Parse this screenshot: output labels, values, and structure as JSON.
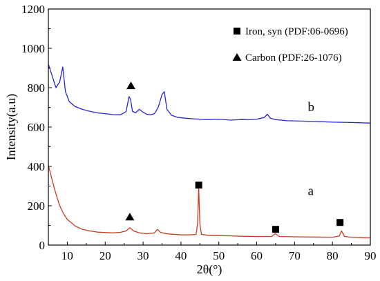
{
  "chart_data": {
    "type": "line",
    "title": "",
    "xlabel": "2θ(°)",
    "ylabel": "Intensity(a.u)",
    "xlim": [
      5,
      90
    ],
    "ylim": [
      0,
      1200
    ],
    "xticks": [
      "10",
      "20",
      "30",
      "40",
      "50",
      "60",
      "70",
      "80",
      "90"
    ],
    "yticks": [
      "0",
      "200",
      "400",
      "600",
      "800",
      "1000",
      "1200"
    ],
    "grid": false,
    "legend_placement": "top-right",
    "legend": [
      {
        "marker": "square",
        "label": "Iron, syn (PDF:06-0696)"
      },
      {
        "marker": "triangle",
        "label": "Carbon (PDF:26-1076)"
      }
    ],
    "series": [
      {
        "name": "b",
        "color": "#2323e0",
        "x": [
          5,
          6,
          7,
          8,
          8.8,
          9.5,
          10.5,
          12,
          14,
          16,
          18,
          20,
          22,
          24,
          25.5,
          26.3,
          26.7,
          27.2,
          28,
          29,
          30,
          31,
          32,
          33,
          34,
          35,
          35.6,
          36.3,
          37.5,
          39,
          41,
          43,
          45,
          47,
          50,
          53,
          56,
          58,
          60,
          62,
          62.8,
          63.6,
          65,
          68,
          72,
          76,
          80,
          85,
          90
        ],
        "y": [
          920,
          860,
          800,
          830,
          905,
          780,
          730,
          705,
          690,
          680,
          672,
          668,
          663,
          662,
          678,
          755,
          740,
          680,
          672,
          690,
          675,
          665,
          662,
          668,
          700,
          765,
          780,
          690,
          660,
          650,
          645,
          642,
          640,
          638,
          640,
          635,
          638,
          637,
          640,
          648,
          665,
          645,
          638,
          632,
          630,
          628,
          625,
          623,
          620
        ]
      },
      {
        "name": "a",
        "color": "#c83a1e",
        "x": [
          5,
          6,
          7,
          8,
          9,
          10,
          11,
          12,
          14,
          16,
          18,
          20,
          22,
          24,
          25.5,
          26.5,
          27.5,
          29,
          31,
          33,
          33.8,
          34.6,
          36,
          38,
          40,
          42,
          44,
          44.4,
          44.7,
          45.0,
          45.4,
          47,
          50,
          53,
          56,
          60,
          62,
          64,
          64.9,
          66,
          70,
          75,
          80,
          81.8,
          82.4,
          83.2,
          85,
          88,
          90
        ],
        "y": [
          405,
          330,
          260,
          200,
          160,
          130,
          115,
          98,
          80,
          72,
          66,
          64,
          62,
          65,
          72,
          88,
          72,
          62,
          58,
          62,
          80,
          65,
          58,
          55,
          52,
          52,
          54,
          110,
          290,
          110,
          55,
          50,
          48,
          47,
          45,
          44,
          44,
          44,
          58,
          44,
          42,
          41,
          40,
          46,
          72,
          44,
          40,
          38,
          37
        ]
      }
    ],
    "peak_markers": [
      {
        "symbol": "triangle",
        "x": 26.8,
        "y": 810,
        "series": "b"
      },
      {
        "symbol": "triangle",
        "x": 26.5,
        "y": 143,
        "series": "a"
      },
      {
        "symbol": "square",
        "x": 44.7,
        "y": 305,
        "series": "a"
      },
      {
        "symbol": "square",
        "x": 65.0,
        "y": 80,
        "series": "a"
      },
      {
        "symbol": "square",
        "x": 82.0,
        "y": 115,
        "series": "a"
      }
    ],
    "curve_labels": [
      {
        "text": "b",
        "x": 73.5,
        "y": 680
      },
      {
        "text": "a",
        "x": 73.5,
        "y": 255
      }
    ]
  }
}
